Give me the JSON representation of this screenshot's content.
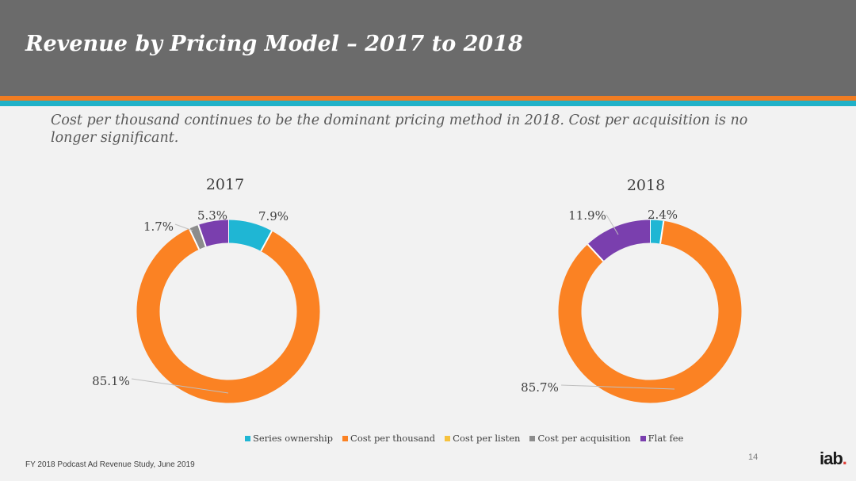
{
  "header": {
    "title": "Revenue by Pricing Model – 2017 to 2018",
    "subtitle": "Cost per thousand continues to be the dominant pricing method in 2018. Cost per acquisition is no longer significant."
  },
  "colors": {
    "header_bg": "#6b6b6b",
    "stripe_orange": "#f07c22",
    "stripe_teal": "#20b1c8"
  },
  "chart_data": [
    {
      "type": "pie",
      "title": "2017",
      "labels": [
        "Series ownership",
        "Cost per thousand",
        "Cost per listen",
        "Cost per acquisition",
        "Flat fee"
      ],
      "values": [
        7.9,
        85.1,
        0,
        1.7,
        5.3
      ],
      "value_labels": [
        "7.9%",
        "85.1%",
        "",
        "1.7%",
        "5.3%"
      ],
      "colors": [
        "#1fb6d4",
        "#fb8223",
        "#f6c23e",
        "#8c8c8c",
        "#7a3fae"
      ],
      "donut": true,
      "legend": "bottom"
    },
    {
      "type": "pie",
      "title": "2018",
      "labels": [
        "Series ownership",
        "Cost per thousand",
        "Cost per listen",
        "Cost per acquisition",
        "Flat fee"
      ],
      "values": [
        2.4,
        85.7,
        0,
        0,
        11.9
      ],
      "value_labels": [
        "2.4%",
        "85.7%",
        "",
        "",
        "11.9%"
      ],
      "colors": [
        "#1fb6d4",
        "#fb8223",
        "#f6c23e",
        "#8c8c8c",
        "#7a3fae"
      ],
      "donut": true,
      "legend": "bottom"
    }
  ],
  "legend": [
    {
      "label": "Series ownership",
      "color": "#1fb6d4"
    },
    {
      "label": "Cost per thousand",
      "color": "#fb8223"
    },
    {
      "label": "Cost per listen",
      "color": "#f6c23e"
    },
    {
      "label": "Cost per acquisition",
      "color": "#8c8c8c"
    },
    {
      "label": "Flat fee",
      "color": "#7a3fae"
    }
  ],
  "footer": {
    "source": "FY 2018 Podcast Ad Revenue Study, June 2019",
    "page_number": "14",
    "logo_text": "iab",
    "logo_dot": "."
  }
}
